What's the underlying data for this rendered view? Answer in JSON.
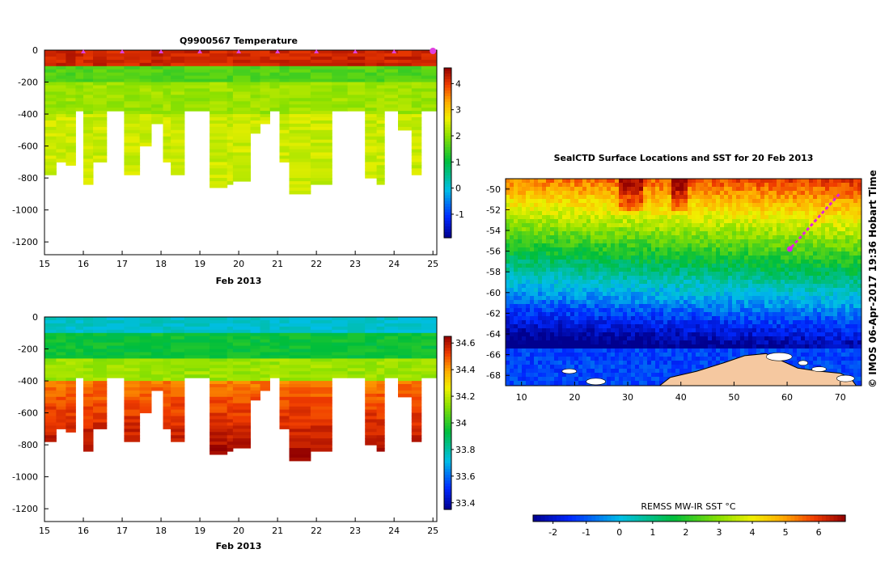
{
  "chart_data": [
    {
      "id": "temperature",
      "type": "heatmap",
      "title": "Q9900567  Temperature",
      "xlabel": "Feb 2013",
      "xlim": [
        15,
        25.1
      ],
      "ylim": [
        -1280,
        0
      ],
      "xticks": [
        15,
        16,
        17,
        18,
        19,
        20,
        21,
        22,
        23,
        24,
        25
      ],
      "yticks": [
        0,
        -200,
        -400,
        -600,
        -800,
        -1000,
        -1200
      ],
      "colorbar": {
        "min": -1.9,
        "max": 4.6,
        "ticks": [
          4,
          3,
          2,
          1,
          0,
          -1
        ]
      },
      "surface_markers_x": [
        16,
        17,
        18,
        19,
        20,
        21,
        22,
        23,
        24,
        25
      ],
      "profiles": [
        {
          "x": 15.0,
          "depth": 770
        },
        {
          "x": 15.3,
          "depth": 690
        },
        {
          "x": 15.55,
          "depth": 720
        },
        {
          "x": 15.8,
          "depth": 380
        },
        {
          "x": 16.0,
          "depth": 830
        },
        {
          "x": 16.25,
          "depth": 700
        },
        {
          "x": 16.6,
          "depth": 370
        },
        {
          "x": 17.05,
          "depth": 780
        },
        {
          "x": 17.45,
          "depth": 590
        },
        {
          "x": 17.75,
          "depth": 450
        },
        {
          "x": 18.05,
          "depth": 700
        },
        {
          "x": 18.25,
          "depth": 780
        },
        {
          "x": 18.6,
          "depth": 370
        },
        {
          "x": 19.25,
          "depth": 850
        },
        {
          "x": 19.7,
          "depth": 840
        },
        {
          "x": 19.85,
          "depth": 820
        },
        {
          "x": 20.3,
          "depth": 520
        },
        {
          "x": 20.55,
          "depth": 450
        },
        {
          "x": 20.8,
          "depth": 370
        },
        {
          "x": 21.05,
          "depth": 700
        },
        {
          "x": 21.3,
          "depth": 890
        },
        {
          "x": 21.85,
          "depth": 840
        },
        {
          "x": 22.4,
          "depth": 370
        },
        {
          "x": 22.8,
          "depth": 370
        },
        {
          "x": 23.25,
          "depth": 800
        },
        {
          "x": 23.55,
          "depth": 830
        },
        {
          "x": 23.75,
          "depth": 370
        },
        {
          "x": 24.1,
          "depth": 490
        },
        {
          "x": 24.45,
          "depth": 780
        },
        {
          "x": 24.7,
          "depth": 370
        }
      ],
      "layers": [
        {
          "top": 0,
          "bottom": 100,
          "value": 4.2
        },
        {
          "top": 100,
          "bottom": 200,
          "value": 1.6
        },
        {
          "top": 200,
          "bottom": 400,
          "value": 2.1
        },
        {
          "top": 400,
          "bottom": 900,
          "value": 2.4
        }
      ]
    },
    {
      "id": "salinity",
      "type": "heatmap",
      "title": "",
      "xlabel": "Feb 2013",
      "xlim": [
        15,
        25.1
      ],
      "ylim": [
        -1280,
        0
      ],
      "xticks": [
        15,
        16,
        17,
        18,
        19,
        20,
        21,
        22,
        23,
        24,
        25
      ],
      "yticks": [
        0,
        -200,
        -400,
        -600,
        -800,
        -1000,
        -1200
      ],
      "colorbar": {
        "min": 33.35,
        "max": 34.65,
        "ticks": [
          34.6,
          34.4,
          34.2,
          34,
          33.8,
          33.6,
          33.4
        ]
      },
      "layers": [
        {
          "top": 0,
          "bottom": 100,
          "value": 33.75
        },
        {
          "top": 100,
          "bottom": 250,
          "value": 33.95
        },
        {
          "top": 250,
          "bottom": 400,
          "value": 34.15
        },
        {
          "top": 400,
          "bottom": 900,
          "value": 34.45
        }
      ]
    },
    {
      "id": "sst_map",
      "type": "heatmap",
      "title": "SealCTD Surface Locations and SST for 20 Feb 2013",
      "xlim": [
        7,
        74
      ],
      "ylim": [
        -69,
        -49
      ],
      "xticks": [
        10,
        20,
        30,
        40,
        50,
        60,
        70
      ],
      "yticks": [
        -50,
        -52,
        -54,
        -56,
        -58,
        -60,
        -62,
        -64,
        -66,
        -68
      ],
      "colorbar": {
        "label": "REMSS MW-IR SST °C",
        "min": -2.6,
        "max": 6.8,
        "ticks": [
          -2,
          -1,
          0,
          1,
          2,
          3,
          4,
          5,
          6
        ]
      },
      "track": {
        "start": [
          69.8,
          -50.5
        ],
        "end": [
          60.5,
          -55.8
        ]
      },
      "side_label": "© IMOS 06-Apr-2017 19:36 Hobart Time"
    }
  ]
}
